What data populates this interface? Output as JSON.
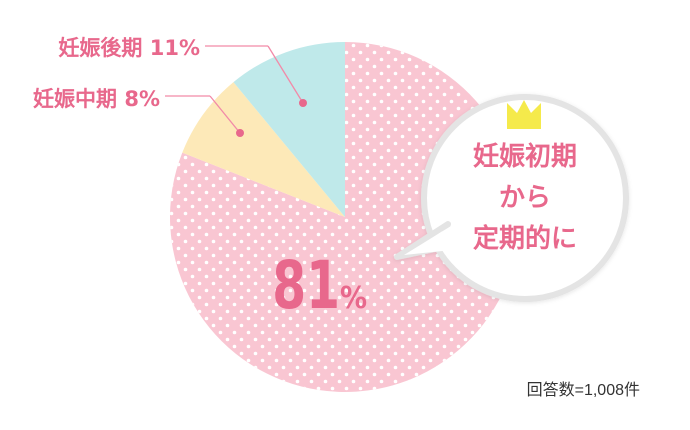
{
  "chart_data": {
    "type": "pie",
    "categories": [
      "妊娠初期から定期的に",
      "妊娠中期",
      "妊娠後期"
    ],
    "values": [
      81,
      8,
      11
    ],
    "unit": "%",
    "labels": {
      "late": "妊娠後期 11%",
      "mid": "妊娠中期 8%",
      "main_value": "81",
      "main_unit": "%"
    },
    "callout": {
      "line1": "妊娠初期",
      "line2": "から",
      "line3": "定期的に"
    },
    "note": "回答数=1,008件",
    "colors": {
      "early": "#f9c6d2",
      "mid": "#fde9b8",
      "late": "#bfe9ea",
      "dots": "#ffffff",
      "accent": "#e8688c",
      "leader": "#f28aa8",
      "crown": "#f5ea4b",
      "bubble_stroke": "#e4e4e4"
    }
  }
}
